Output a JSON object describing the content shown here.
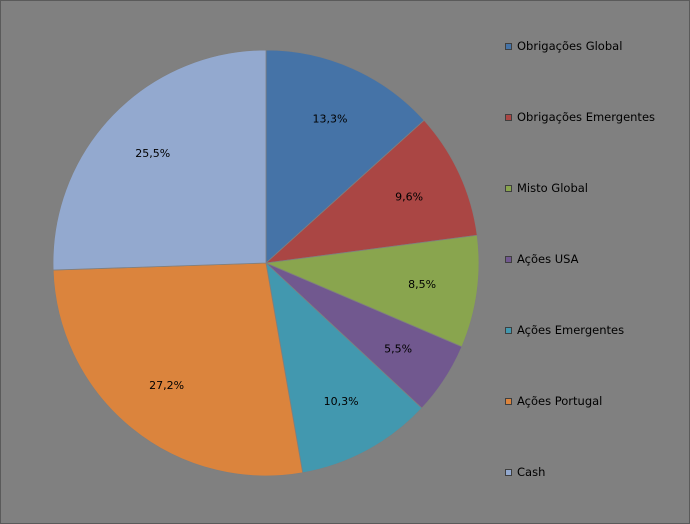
{
  "chart_data": {
    "type": "pie",
    "title": "",
    "slices": [
      {
        "label": "Obrigações Global",
        "value": 13.3,
        "value_label": "13,3%",
        "color": "#4573a7"
      },
      {
        "label": "Obrigações Emergentes",
        "value": 9.6,
        "value_label": "9,6%",
        "color": "#aa4644"
      },
      {
        "label": "Misto Global",
        "value": 8.5,
        "value_label": "8,5%",
        "color": "#89a54e"
      },
      {
        "label": "Ações USA",
        "value": 5.5,
        "value_label": "5,5%",
        "color": "#71588f"
      },
      {
        "label": "Ações Emergentes",
        "value": 10.3,
        "value_label": "10,3%",
        "color": "#4298af"
      },
      {
        "label": "Ações Portugal",
        "value": 27.2,
        "value_label": "27,2%",
        "color": "#db843d"
      },
      {
        "label": "Cash",
        "value": 25.5,
        "value_label": "25,5%",
        "color": "#93a9cf"
      }
    ],
    "legend_position": "right",
    "background_color": "#808080"
  }
}
